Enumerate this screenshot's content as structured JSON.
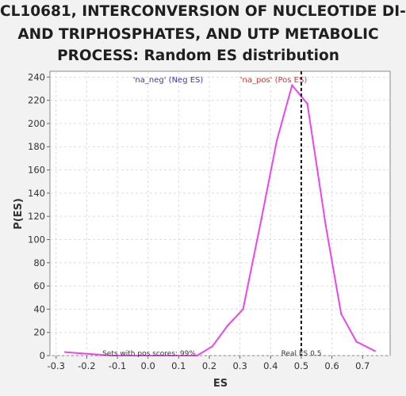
{
  "chart_data": {
    "type": "line",
    "title_lines": [
      "CL10681, INTERCONVERSION OF NUCLEOTIDE DI-",
      "AND TRIPHOSPHATES, AND UTP METABOLIC",
      "PROCESS: Random ES distribution"
    ],
    "xlabel": "ES",
    "ylabel": "P(ES)",
    "xlim": [
      -0.32,
      0.79
    ],
    "ylim": [
      0,
      245
    ],
    "x_ticks": [
      "-0.3",
      "-0.2",
      "-0.1",
      "0.0",
      "0.1",
      "0.2",
      "0.3",
      "0.4",
      "0.5",
      "0.6",
      "0.7"
    ],
    "y_ticks": [
      "0",
      "20",
      "40",
      "60",
      "80",
      "100",
      "120",
      "140",
      "160",
      "180",
      "200",
      "220",
      "240"
    ],
    "grid": true,
    "series": [
      {
        "name": "'na_pos' (Pos ES)",
        "color": "#ee44ee",
        "x": [
          -0.27,
          -0.22,
          -0.17,
          -0.12,
          -0.07,
          -0.01,
          0.04,
          0.1,
          0.16,
          0.21,
          0.26,
          0.31,
          0.37,
          0.42,
          0.47,
          0.52,
          0.58,
          0.63,
          0.68,
          0.74
        ],
        "y": [
          3,
          2,
          1,
          0,
          0,
          0,
          0,
          0,
          0,
          8,
          26,
          40,
          118,
          185,
          233,
          217,
          112,
          36,
          12,
          4
        ]
      }
    ],
    "legend": [
      {
        "label": "'na_neg' (Neg ES)",
        "color": "#3333cc"
      },
      {
        "label": "'na_pos' (Pos ES)",
        "color": "#e03030"
      }
    ],
    "real_es": {
      "value": 0.5,
      "label": "Real ES 0.5"
    },
    "annotation": "Sets with pos scores: 99%"
  }
}
